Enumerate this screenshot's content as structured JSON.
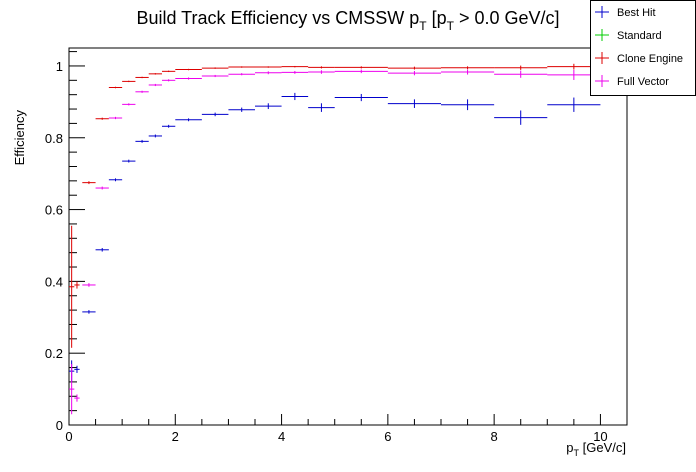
{
  "chart_data": {
    "type": "scatter",
    "title": "Build Track Efficiency vs CMSSW p_T [p_T > 0.0 GeV/c]",
    "title_parts": {
      "prefix": "Build Track Efficiency vs CMSSW p",
      "sub1": "T",
      "mid": " [p",
      "sub2": "T",
      "suffix": " > 0.0 GeV/c]"
    },
    "xlabel_parts": {
      "p": "p",
      "sub": "T",
      "unit": " [GeV/c]"
    },
    "ylabel": "Efficiency",
    "xlim": [
      0,
      10.5
    ],
    "ylim": [
      0,
      1.05
    ],
    "xticks": [
      0,
      2,
      4,
      6,
      8,
      10
    ],
    "yticks": [
      0,
      0.2,
      0.4,
      0.6,
      0.8,
      1
    ],
    "grid": false,
    "legend_position": "top-right",
    "series": [
      {
        "name": "Best Hit",
        "color": "#0000cc",
        "points": [
          {
            "x": 0.05,
            "dx": 0.05,
            "y": 0.15,
            "ey": 0.03
          },
          {
            "x": 0.15,
            "dx": 0.05,
            "y": 0.155,
            "ey": 0.01
          },
          {
            "x": 0.375,
            "dx": 0.125,
            "y": 0.315,
            "ey": 0.005
          },
          {
            "x": 0.625,
            "dx": 0.125,
            "y": 0.488,
            "ey": 0.005
          },
          {
            "x": 0.875,
            "dx": 0.125,
            "y": 0.683,
            "ey": 0.004
          },
          {
            "x": 1.125,
            "dx": 0.125,
            "y": 0.735,
            "ey": 0.004
          },
          {
            "x": 1.375,
            "dx": 0.125,
            "y": 0.79,
            "ey": 0.004
          },
          {
            "x": 1.625,
            "dx": 0.125,
            "y": 0.805,
            "ey": 0.004
          },
          {
            "x": 1.875,
            "dx": 0.125,
            "y": 0.832,
            "ey": 0.004
          },
          {
            "x": 2.25,
            "dx": 0.25,
            "y": 0.85,
            "ey": 0.004
          },
          {
            "x": 2.75,
            "dx": 0.25,
            "y": 0.865,
            "ey": 0.005
          },
          {
            "x": 3.25,
            "dx": 0.25,
            "y": 0.878,
            "ey": 0.006
          },
          {
            "x": 3.75,
            "dx": 0.25,
            "y": 0.888,
            "ey": 0.008
          },
          {
            "x": 4.25,
            "dx": 0.25,
            "y": 0.915,
            "ey": 0.01
          },
          {
            "x": 4.75,
            "dx": 0.25,
            "y": 0.884,
            "ey": 0.012
          },
          {
            "x": 5.5,
            "dx": 0.5,
            "y": 0.912,
            "ey": 0.01
          },
          {
            "x": 6.5,
            "dx": 0.5,
            "y": 0.895,
            "ey": 0.012
          },
          {
            "x": 7.5,
            "dx": 0.5,
            "y": 0.892,
            "ey": 0.015
          },
          {
            "x": 8.5,
            "dx": 0.5,
            "y": 0.856,
            "ey": 0.02
          },
          {
            "x": 9.5,
            "dx": 0.5,
            "y": 0.892,
            "ey": 0.02
          }
        ]
      },
      {
        "name": "Standard",
        "color": "#00cc00",
        "points": []
      },
      {
        "name": "Clone Engine",
        "color": "#dd0000",
        "points": [
          {
            "x": 0.05,
            "dx": 0.05,
            "y": 0.385,
            "ey": 0.17
          },
          {
            "x": 0.15,
            "dx": 0.05,
            "y": 0.39,
            "ey": 0.01
          },
          {
            "x": 0.375,
            "dx": 0.125,
            "y": 0.675,
            "ey": 0.004
          },
          {
            "x": 0.625,
            "dx": 0.125,
            "y": 0.853,
            "ey": 0.003
          },
          {
            "x": 0.875,
            "dx": 0.125,
            "y": 0.94,
            "ey": 0.002
          },
          {
            "x": 1.125,
            "dx": 0.125,
            "y": 0.957,
            "ey": 0.002
          },
          {
            "x": 1.375,
            "dx": 0.125,
            "y": 0.968,
            "ey": 0.002
          },
          {
            "x": 1.625,
            "dx": 0.125,
            "y": 0.978,
            "ey": 0.002
          },
          {
            "x": 1.875,
            "dx": 0.125,
            "y": 0.985,
            "ey": 0.002
          },
          {
            "x": 2.25,
            "dx": 0.25,
            "y": 0.99,
            "ey": 0.002
          },
          {
            "x": 2.75,
            "dx": 0.25,
            "y": 0.994,
            "ey": 0.002
          },
          {
            "x": 3.25,
            "dx": 0.25,
            "y": 0.997,
            "ey": 0.002
          },
          {
            "x": 3.75,
            "dx": 0.25,
            "y": 0.997,
            "ey": 0.002
          },
          {
            "x": 4.25,
            "dx": 0.25,
            "y": 0.998,
            "ey": 0.002
          },
          {
            "x": 4.75,
            "dx": 0.25,
            "y": 0.996,
            "ey": 0.003
          },
          {
            "x": 5.5,
            "dx": 0.5,
            "y": 0.996,
            "ey": 0.003
          },
          {
            "x": 6.5,
            "dx": 0.5,
            "y": 0.994,
            "ey": 0.004
          },
          {
            "x": 7.5,
            "dx": 0.5,
            "y": 0.995,
            "ey": 0.004
          },
          {
            "x": 8.5,
            "dx": 0.5,
            "y": 0.995,
            "ey": 0.006
          },
          {
            "x": 9.5,
            "dx": 0.5,
            "y": 0.998,
            "ey": 0.008
          }
        ]
      },
      {
        "name": "Full Vector",
        "color": "#ee00ee",
        "points": [
          {
            "x": 0.05,
            "dx": 0.05,
            "y": 0.1,
            "ey": 0.07
          },
          {
            "x": 0.15,
            "dx": 0.05,
            "y": 0.075,
            "ey": 0.01
          },
          {
            "x": 0.375,
            "dx": 0.125,
            "y": 0.39,
            "ey": 0.005
          },
          {
            "x": 0.625,
            "dx": 0.125,
            "y": 0.66,
            "ey": 0.004
          },
          {
            "x": 0.875,
            "dx": 0.125,
            "y": 0.855,
            "ey": 0.003
          },
          {
            "x": 1.125,
            "dx": 0.125,
            "y": 0.893,
            "ey": 0.003
          },
          {
            "x": 1.375,
            "dx": 0.125,
            "y": 0.928,
            "ey": 0.003
          },
          {
            "x": 1.625,
            "dx": 0.125,
            "y": 0.947,
            "ey": 0.003
          },
          {
            "x": 1.875,
            "dx": 0.125,
            "y": 0.96,
            "ey": 0.003
          },
          {
            "x": 2.25,
            "dx": 0.25,
            "y": 0.965,
            "ey": 0.003
          },
          {
            "x": 2.75,
            "dx": 0.25,
            "y": 0.972,
            "ey": 0.003
          },
          {
            "x": 3.25,
            "dx": 0.25,
            "y": 0.977,
            "ey": 0.003
          },
          {
            "x": 3.75,
            "dx": 0.25,
            "y": 0.981,
            "ey": 0.004
          },
          {
            "x": 4.25,
            "dx": 0.25,
            "y": 0.982,
            "ey": 0.004
          },
          {
            "x": 4.75,
            "dx": 0.25,
            "y": 0.983,
            "ey": 0.005
          },
          {
            "x": 5.5,
            "dx": 0.5,
            "y": 0.985,
            "ey": 0.005
          },
          {
            "x": 6.5,
            "dx": 0.5,
            "y": 0.98,
            "ey": 0.006
          },
          {
            "x": 7.5,
            "dx": 0.5,
            "y": 0.983,
            "ey": 0.007
          },
          {
            "x": 8.5,
            "dx": 0.5,
            "y": 0.977,
            "ey": 0.01
          },
          {
            "x": 9.5,
            "dx": 0.5,
            "y": 0.975,
            "ey": 0.014
          }
        ]
      }
    ]
  }
}
